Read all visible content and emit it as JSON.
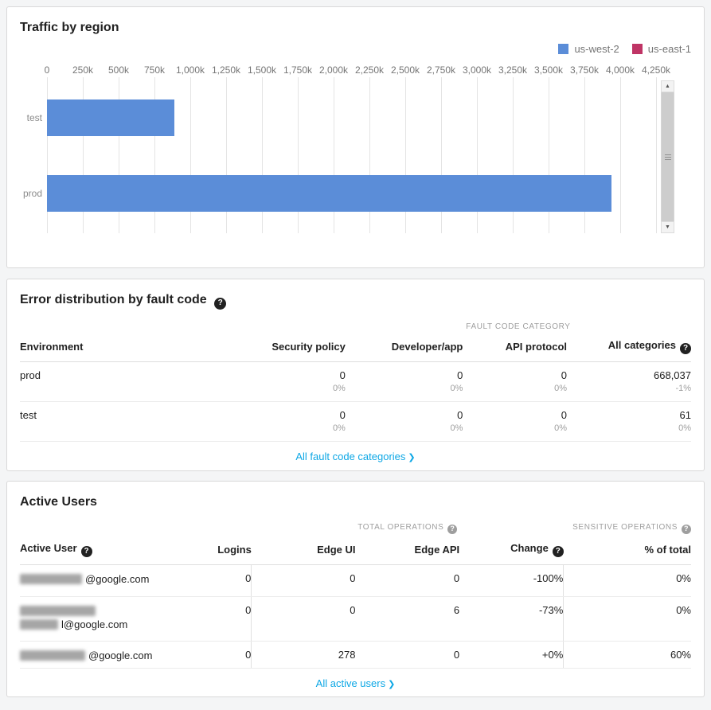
{
  "icons": {
    "help": "?",
    "chevron": "❯",
    "scroll_up": "▲",
    "scroll_down": "▼"
  },
  "traffic_card": {
    "title": "Traffic by region",
    "legend": [
      {
        "label": "us-west-2",
        "color": "#5b8dd8"
      },
      {
        "label": "us-east-1",
        "color": "#bf3465"
      }
    ],
    "chart_data": {
      "type": "bar",
      "orientation": "horizontal",
      "title": "Traffic by region",
      "categories": [
        "test",
        "prod"
      ],
      "series": [
        {
          "name": "us-west-2",
          "color": "#5b8dd8",
          "values": [
            890000,
            3939000
          ]
        },
        {
          "name": "us-east-1",
          "color": "#bf3465",
          "values": [
            0,
            0
          ]
        }
      ],
      "x_max": 4250000,
      "x_ticks": [
        "0",
        "250k",
        "500k",
        "750k",
        "1,000k",
        "1,250k",
        "1,500k",
        "1,750k",
        "2,000k",
        "2,250k",
        "2,500k",
        "2,750k",
        "3,000k",
        "3,250k",
        "3,500k",
        "3,750k",
        "4,000k",
        "4,250k"
      ],
      "grid": true,
      "legend_position": "top-right",
      "xlabel": "",
      "ylabel": ""
    }
  },
  "errors_card": {
    "title": "Error distribution by fault code",
    "group_header": "FAULT CODE CATEGORY",
    "columns": {
      "environment": "Environment",
      "security_policy": "Security policy",
      "developer_app": "Developer/app",
      "api_protocol": "API protocol",
      "all_categories": "All categories"
    },
    "rows": [
      {
        "environment": "prod",
        "security_policy": "0",
        "security_policy_sub": "0%",
        "developer_app": "0",
        "developer_app_sub": "0%",
        "api_protocol": "0",
        "api_protocol_sub": "0%",
        "all_categories": "668,037",
        "all_categories_sub": "-1%"
      },
      {
        "environment": "test",
        "security_policy": "0",
        "security_policy_sub": "0%",
        "developer_app": "0",
        "developer_app_sub": "0%",
        "api_protocol": "0",
        "api_protocol_sub": "0%",
        "all_categories": "61",
        "all_categories_sub": "0%"
      }
    ],
    "footer_link": "All fault code categories"
  },
  "users_card": {
    "title": "Active Users",
    "group_headers": {
      "total_operations": "TOTAL OPERATIONS",
      "sensitive_operations": "SENSITIVE OPERATIONS"
    },
    "columns": {
      "active_user": "Active User",
      "logins": "Logins",
      "edge_ui": "Edge UI",
      "edge_api": "Edge API",
      "change": "Change",
      "pct_total": "% of total"
    },
    "rows": [
      {
        "email_visible": "@google.com",
        "email_redacted": true,
        "logins": "0",
        "edge_ui": "0",
        "edge_api": "0",
        "change": "-100%",
        "pct_total": "0%"
      },
      {
        "email_visible": "l@google.com",
        "email_redacted": true,
        "logins": "0",
        "edge_ui": "0",
        "edge_api": "6",
        "change": "-73%",
        "pct_total": "0%"
      },
      {
        "email_visible": "@google.com",
        "email_redacted": true,
        "logins": "0",
        "edge_ui": "278",
        "edge_api": "0",
        "change": "+0%",
        "pct_total": "60%"
      }
    ],
    "footer_link": "All active users"
  }
}
